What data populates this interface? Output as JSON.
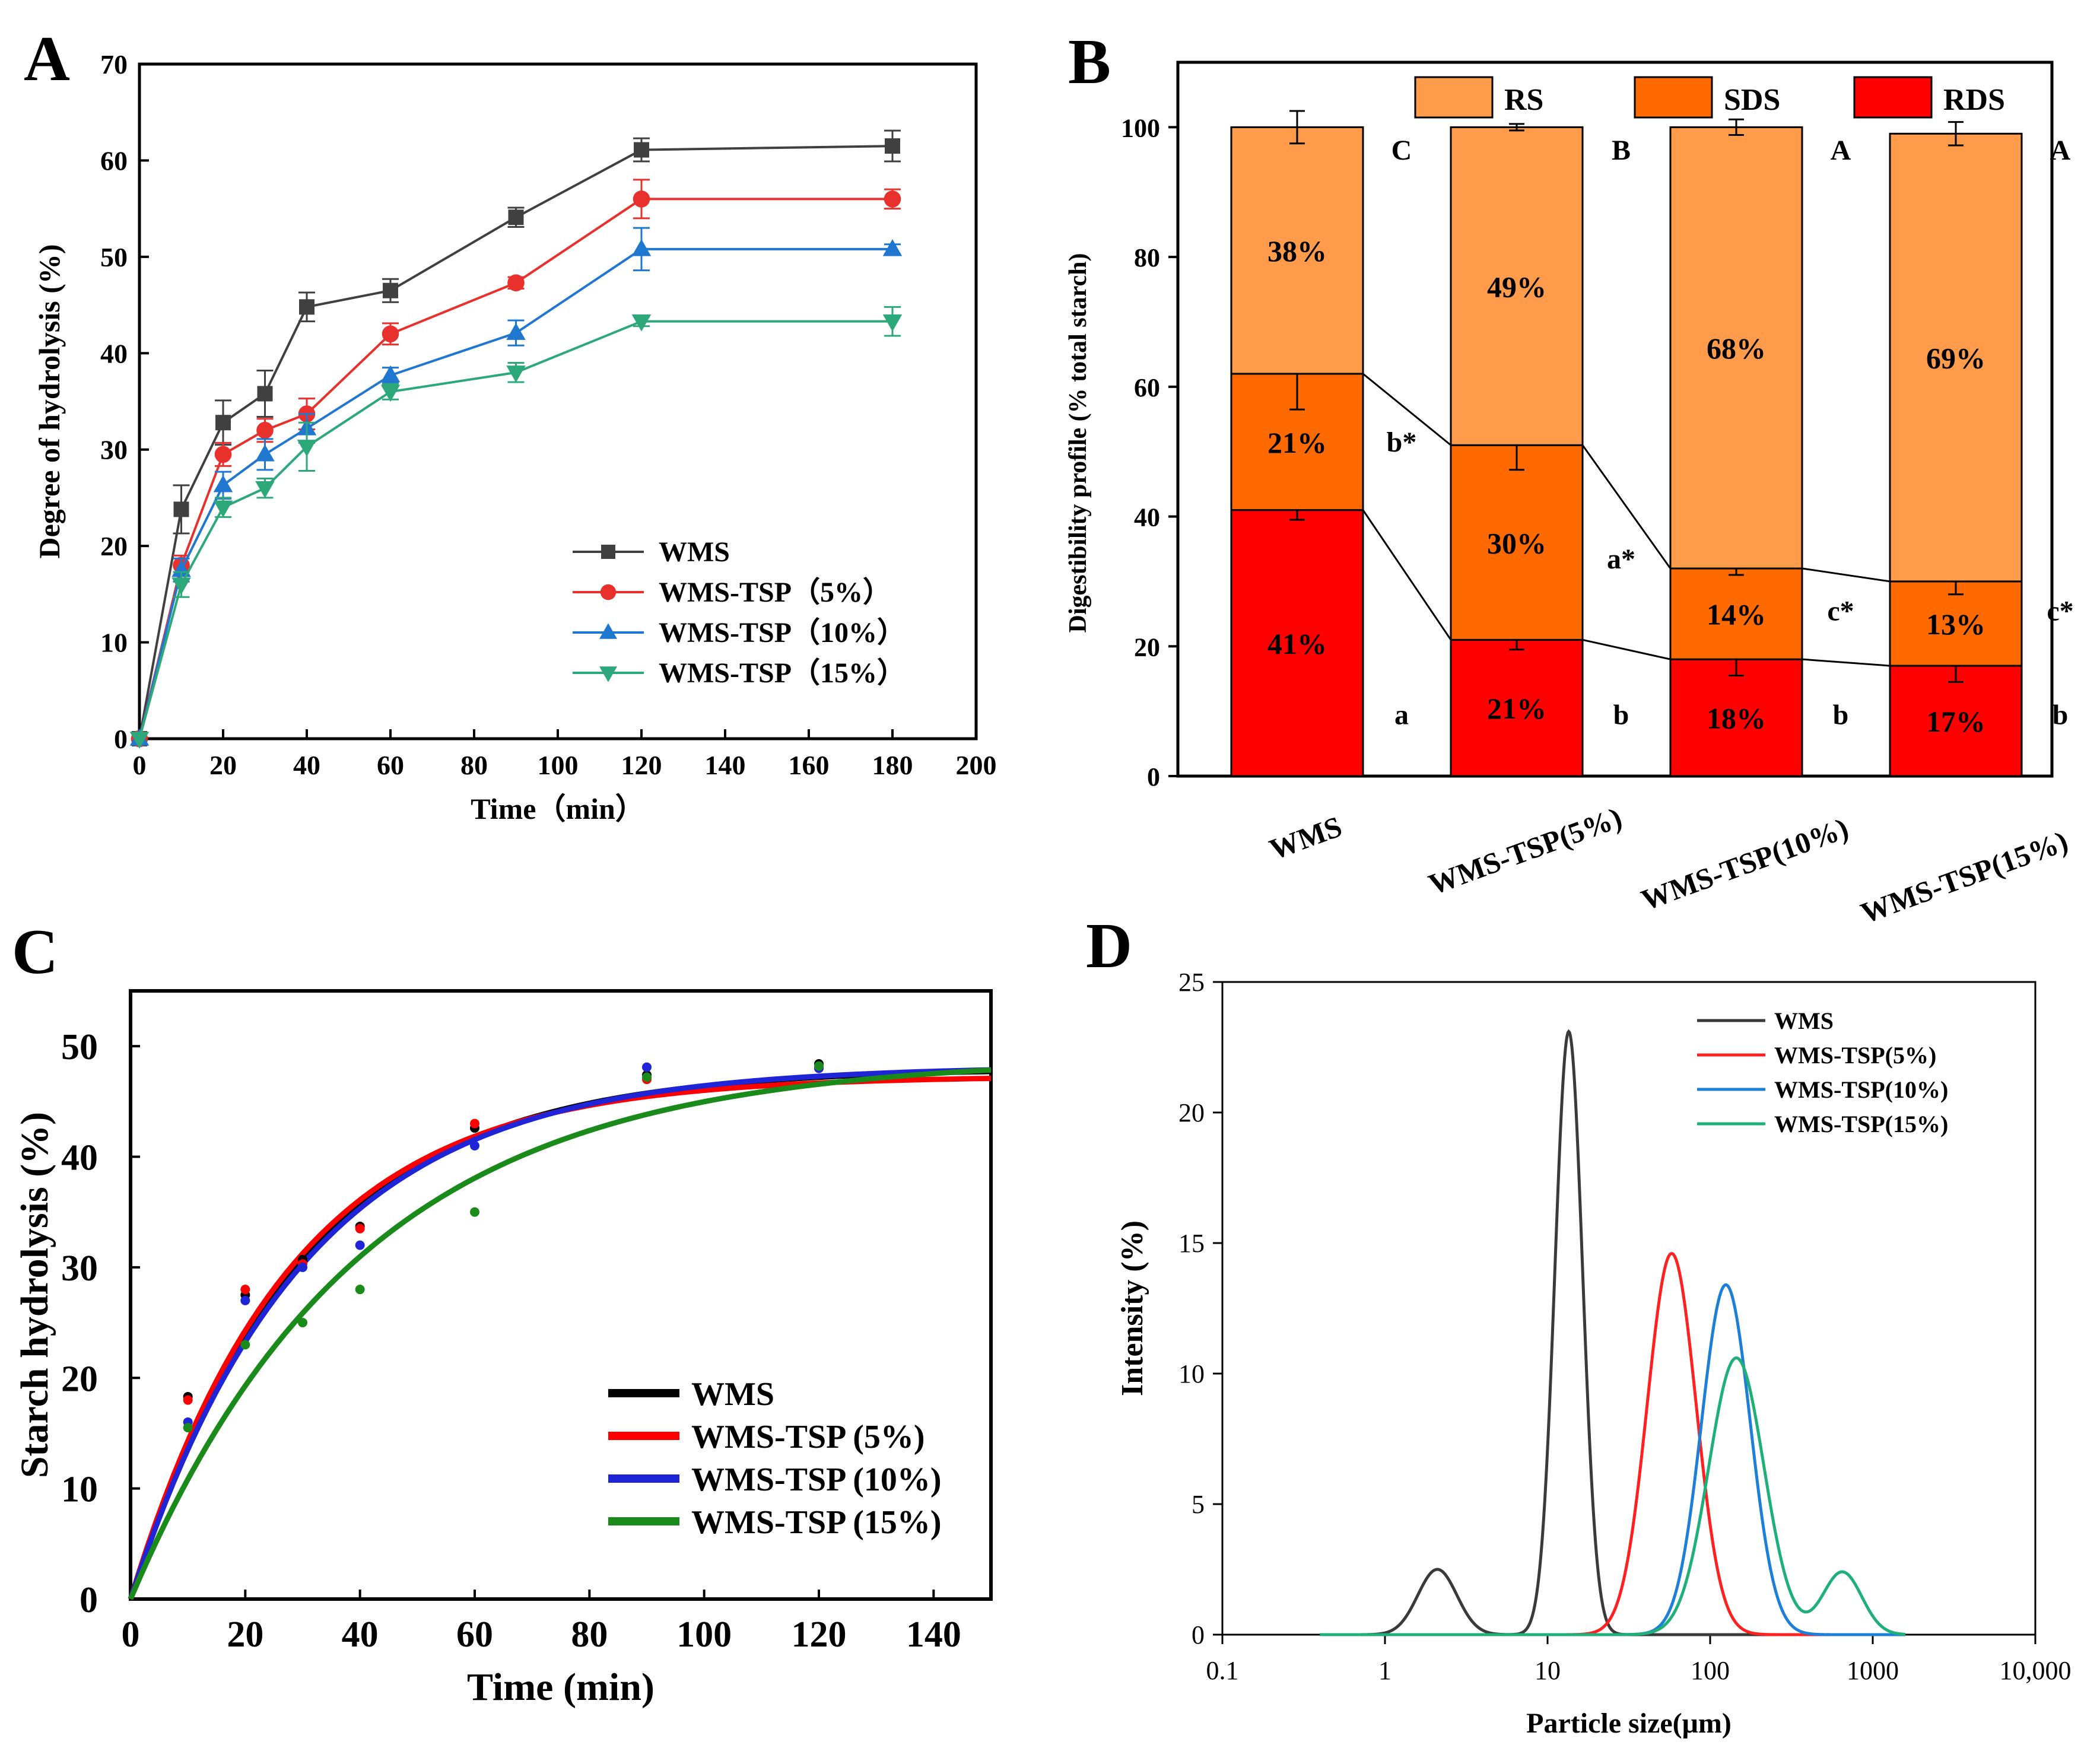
{
  "panels": [
    {
      "id": "A",
      "label": "A"
    },
    {
      "id": "B",
      "label": "B"
    },
    {
      "id": "C",
      "label": "C"
    },
    {
      "id": "D",
      "label": "D"
    }
  ],
  "chart_data": [
    {
      "panel": "A",
      "type": "line",
      "title": "",
      "xlabel": "Time（min）",
      "ylabel": "Degree of hydrolysis (%)",
      "xlim": [
        0,
        200
      ],
      "ylim": [
        0,
        70
      ],
      "xticks": [
        "0",
        "20",
        "40",
        "60",
        "80",
        "100",
        "120",
        "140",
        "160",
        "180",
        "200"
      ],
      "yticks": [
        "0",
        "10",
        "20",
        "30",
        "40",
        "50",
        "60",
        "70"
      ],
      "x": [
        0,
        10,
        20,
        30,
        40,
        60,
        90,
        120,
        180
      ],
      "series": [
        {
          "name": "WMS",
          "color": "#404040",
          "marker": "square",
          "values": [
            0,
            23.8,
            32.8,
            35.8,
            44.8,
            46.5,
            54.1,
            61.1,
            61.5
          ],
          "errors": [
            0,
            2.5,
            2.3,
            2.4,
            1.5,
            1.2,
            1.0,
            1.2,
            1.6
          ]
        },
        {
          "name": "WMS-TSP（5%）",
          "color": "#e8302c",
          "marker": "circle",
          "values": [
            0,
            18.0,
            29.5,
            32.0,
            33.7,
            42.0,
            47.3,
            56.0,
            56.0
          ],
          "errors": [
            0,
            1.0,
            1.2,
            1.2,
            1.6,
            1.1,
            0.6,
            2.0,
            1.0
          ]
        },
        {
          "name": "WMS-TSP（10%）",
          "color": "#1f77d0",
          "marker": "triangle-up",
          "values": [
            0,
            17.5,
            26.3,
            29.5,
            32.2,
            37.7,
            42.1,
            50.8,
            50.8
          ],
          "errors": [
            0,
            1.2,
            1.4,
            1.6,
            1.5,
            0.8,
            1.3,
            2.2,
            0.5
          ]
        },
        {
          "name": "WMS-TSP（15%）",
          "color": "#2ca87a",
          "marker": "triangle-down",
          "values": [
            0,
            16.0,
            24.0,
            26.0,
            30.3,
            36.0,
            38.0,
            43.3,
            43.3
          ],
          "errors": [
            0,
            1.3,
            1.0,
            1.0,
            2.5,
            0.8,
            1.0,
            0.5,
            1.5
          ]
        }
      ],
      "legend": "bottom-right"
    },
    {
      "panel": "B",
      "type": "bar",
      "stacked": true,
      "ylabel": "Digestibility profile (% total starch)",
      "ylim": [
        0,
        110
      ],
      "yticks": [
        "0",
        "20",
        "40",
        "60",
        "80",
        "100"
      ],
      "categories": [
        "WMS",
        "WMS-TSP(5%)",
        "WMS-TSP(10%)",
        "WMS-TSP(15%)"
      ],
      "series": [
        {
          "name": "RDS",
          "color": "#ff0000",
          "values": [
            41,
            21,
            18,
            17
          ],
          "labels": [
            "41%",
            "21%",
            "18%",
            "17%"
          ],
          "errors": [
            1.5,
            1.5,
            2.5,
            2.5
          ]
        },
        {
          "name": "SDS",
          "color": "#ff6a00",
          "values": [
            21,
            30,
            14,
            13
          ],
          "labels": [
            "21%",
            "30%",
            "14%",
            "13%"
          ],
          "errors": [
            5.5,
            3.8,
            1.0,
            2.0
          ]
        },
        {
          "name": "RS",
          "color": "#ff9c4c",
          "values": [
            38,
            49,
            68,
            69
          ],
          "labels": [
            "38%",
            "49%",
            "68%",
            "69%"
          ],
          "errors": [
            2.5,
            0.5,
            1.2,
            1.8
          ]
        }
      ],
      "legend_order": [
        "RS",
        "SDS",
        "RDS"
      ],
      "letters_rs": [
        "C",
        "B",
        "A",
        "A"
      ],
      "letters_sds": [
        "b*",
        "a*",
        "c*",
        "c*"
      ],
      "letters_rds": [
        "a",
        "b",
        "b",
        "b"
      ],
      "legend": "top"
    },
    {
      "panel": "C",
      "type": "line",
      "xlabel": "Time (min)",
      "ylabel": "Starch hydrolysis  (%)",
      "xlim": [
        0,
        150
      ],
      "ylim": [
        0,
        55
      ],
      "xticks": [
        "0",
        "20",
        "40",
        "60",
        "80",
        "100",
        "120",
        "140"
      ],
      "yticks": [
        "0",
        "10",
        "20",
        "30",
        "40",
        "50"
      ],
      "model": "first-order: C = Cinf * (1 - exp(-k t))",
      "series": [
        {
          "name": "WMS",
          "color": "#000000",
          "cinf": 48.0,
          "k": 0.034,
          "points_x": [
            10,
            20,
            30,
            40,
            60,
            90,
            120
          ],
          "points_y": [
            18.3,
            27.5,
            30.7,
            33.7,
            42.6,
            47.4,
            48.4
          ]
        },
        {
          "name": "WMS-TSP (5%)",
          "color": "#ff0000",
          "cinf": 47.3,
          "k": 0.036,
          "points_x": [
            10,
            20,
            30,
            40,
            60,
            90,
            120
          ],
          "points_y": [
            18.0,
            28.0,
            30.3,
            33.5,
            43.0,
            47.0,
            48.0
          ]
        },
        {
          "name": "WMS-TSP (10%)",
          "color": "#1f24d6",
          "cinf": 48.2,
          "k": 0.033,
          "points_x": [
            10,
            20,
            30,
            40,
            60,
            90,
            120
          ],
          "points_y": [
            16.0,
            27.0,
            30.0,
            32.0,
            41.0,
            48.1,
            48.0
          ]
        },
        {
          "name": "WMS-TSP (15%)",
          "color": "#1a8a1a",
          "cinf": 49.0,
          "k": 0.025,
          "points_x": [
            10,
            20,
            30,
            40,
            60,
            90,
            120
          ],
          "points_y": [
            15.5,
            23.0,
            25.0,
            28.0,
            35.0,
            47.2,
            48.2
          ]
        }
      ],
      "legend": "bottom-right"
    },
    {
      "panel": "D",
      "type": "line",
      "xlabel": "Particle size(μm)",
      "ylabel": "Intensity (%)",
      "xscale": "log",
      "xlim": [
        0.1,
        10000
      ],
      "ylim": [
        0,
        25
      ],
      "xticks": [
        "0.1",
        "1",
        "10",
        "100",
        "1000",
        "10,000"
      ],
      "yticks": [
        "0",
        "5",
        "10",
        "15",
        "20",
        "25"
      ],
      "series": [
        {
          "name": "WMS",
          "color": "#3a3a3a",
          "peaks": [
            {
              "center": 2.1,
              "height": 2.5,
              "width": 0.12
            },
            {
              "center": 13.5,
              "height": 23.1,
              "width": 0.085
            }
          ]
        },
        {
          "name": "WMS-TSP(5%)",
          "color": "#ff2020",
          "peaks": [
            {
              "center": 58,
              "height": 14.6,
              "width": 0.15
            }
          ]
        },
        {
          "name": "WMS-TSP(10%)",
          "color": "#1e7fd8",
          "peaks": [
            {
              "center": 125,
              "height": 13.4,
              "width": 0.15
            }
          ]
        },
        {
          "name": "WMS-TSP(15%)",
          "color": "#1fb07a",
          "peaks": [
            {
              "center": 145,
              "height": 10.6,
              "width": 0.17
            },
            {
              "center": 650,
              "height": 2.4,
              "width": 0.12
            }
          ]
        }
      ],
      "legend": "top-right"
    }
  ]
}
